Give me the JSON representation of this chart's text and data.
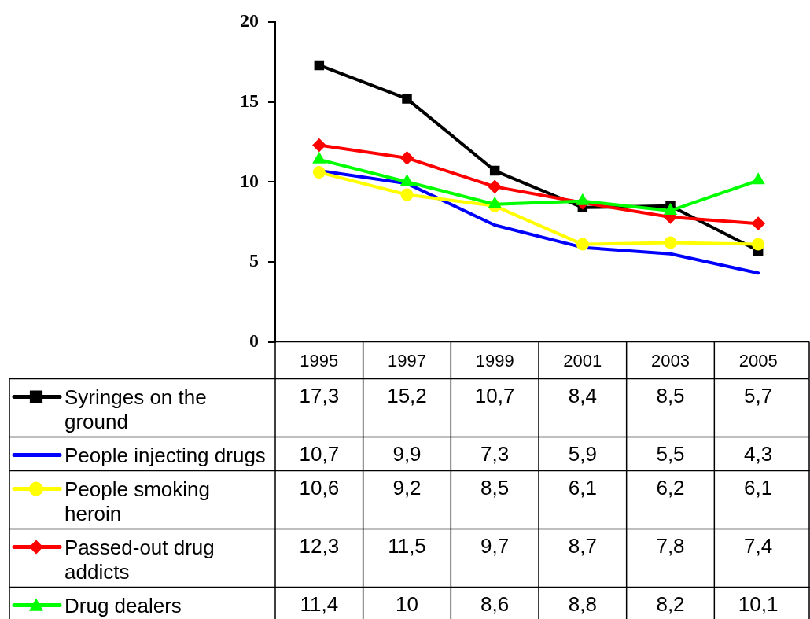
{
  "chart_data": {
    "type": "line",
    "categories": [
      "1995",
      "1997",
      "1999",
      "2001",
      "2003",
      "2005"
    ],
    "ylim": [
      0,
      20
    ],
    "yticks": [
      0,
      5,
      10,
      15,
      20
    ],
    "grid": false,
    "legend": "bottom",
    "line_style": "solid",
    "series": [
      {
        "name": "Syringes on the ground",
        "color": "#000000",
        "marker": "square",
        "values": [
          17.3,
          15.2,
          10.7,
          8.4,
          8.5,
          5.7
        ],
        "value_labels": [
          "17,3",
          "15,2",
          "10,7",
          "8,4",
          "8,5",
          "5,7"
        ]
      },
      {
        "name": "People injecting drugs",
        "color": "#0000ff",
        "marker": "none",
        "values": [
          10.7,
          9.9,
          7.3,
          5.9,
          5.5,
          4.3
        ],
        "value_labels": [
          "10,7",
          "9,9",
          "7,3",
          "5,9",
          "5,5",
          "4,3"
        ]
      },
      {
        "name": "People smoking heroin",
        "color": "#ffff00",
        "marker": "circle",
        "values": [
          10.6,
          9.2,
          8.5,
          6.1,
          6.2,
          6.1
        ],
        "value_labels": [
          "10,6",
          "9,2",
          "8,5",
          "6,1",
          "6,2",
          "6,1"
        ]
      },
      {
        "name": "Passed-out drug addicts",
        "color": "#ff0000",
        "marker": "diamond",
        "values": [
          12.3,
          11.5,
          9.7,
          8.7,
          7.8,
          7.4
        ],
        "value_labels": [
          "12,3",
          "11,5",
          "9,7",
          "8,7",
          "7,8",
          "7,4"
        ]
      },
      {
        "name": "Drug dealers",
        "color": "#00ff00",
        "marker": "triangle",
        "values": [
          11.4,
          10,
          8.6,
          8.8,
          8.2,
          10.1
        ],
        "value_labels": [
          "11,4",
          "10",
          "8,6",
          "8,8",
          "8,2",
          "10,1"
        ]
      }
    ]
  }
}
